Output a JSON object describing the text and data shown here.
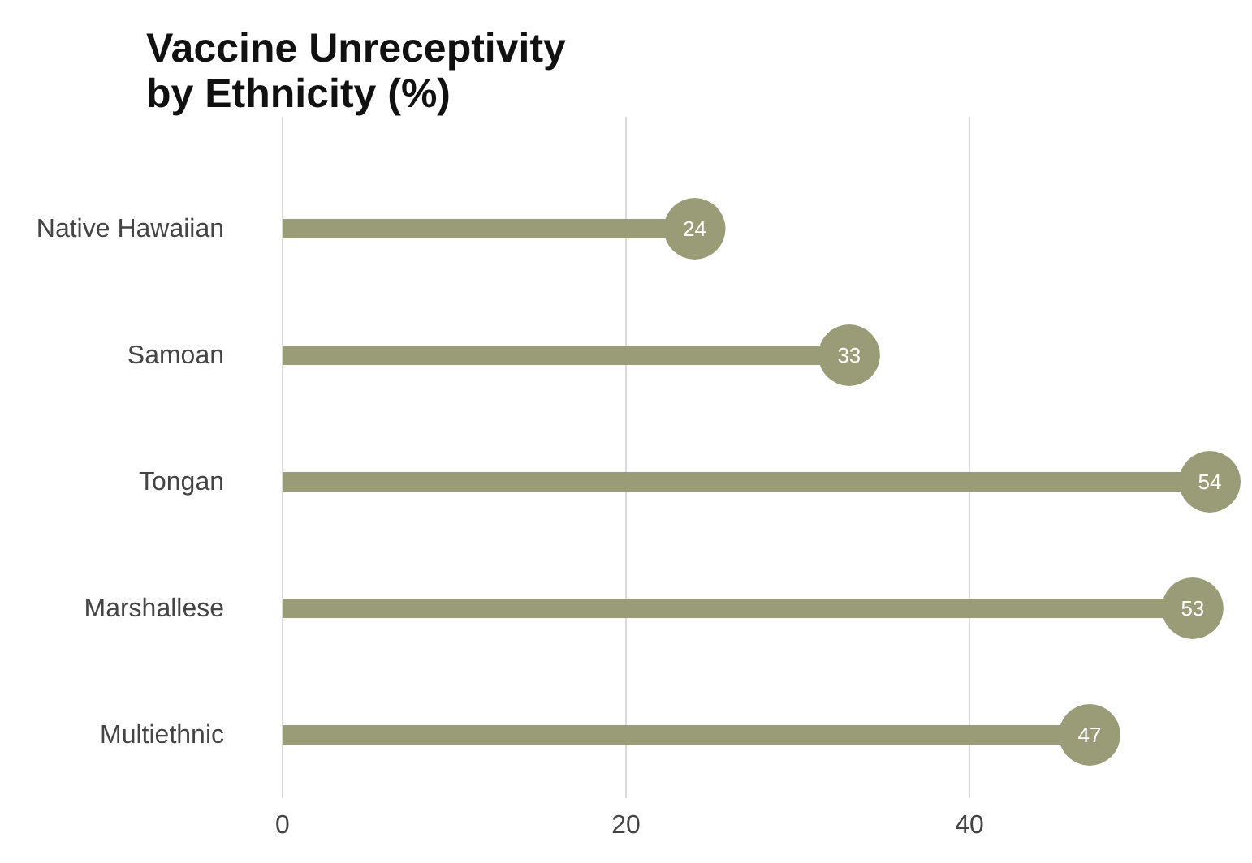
{
  "chart_data": {
    "type": "lollipop",
    "orientation": "horizontal",
    "title": "Vaccine Unreceptivity by Ethnicity (%)",
    "categories": [
      "Native Hawaiian",
      "Samoan",
      "Tongan",
      "Marshallese",
      "Multiethnic"
    ],
    "values": [
      24,
      33,
      54,
      53,
      47
    ],
    "color": "#9a9c78",
    "xlim": [
      0,
      54
    ],
    "xticks": [
      0,
      20,
      40
    ],
    "grid": "x",
    "marker": "circle",
    "data_labels": true
  }
}
